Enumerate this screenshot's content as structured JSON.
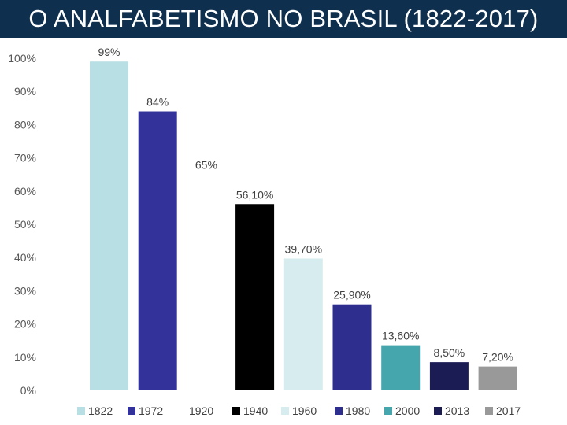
{
  "title": "O ANALFABETISMO NO BRASIL (1822-2017)",
  "chart_data": {
    "type": "bar",
    "title": "O ANALFABETISMO NO BRASIL (1822-2017)",
    "xlabel": "",
    "ylabel": "",
    "ylim": [
      0,
      100
    ],
    "yticks": [
      "0%",
      "10%",
      "20%",
      "30%",
      "40%",
      "50%",
      "60%",
      "70%",
      "80%",
      "90%",
      "100%"
    ],
    "grid": false,
    "legend": "bottom",
    "categories": [
      "1822",
      "1972",
      "1920",
      "1940",
      "1960",
      "1980",
      "2000",
      "2013",
      "2017"
    ],
    "values": [
      99,
      84,
      65,
      56.1,
      39.7,
      25.9,
      13.6,
      8.5,
      7.2
    ],
    "data_labels": [
      "99%",
      "84%",
      "65%",
      "56,10%",
      "39,70%",
      "25,90%",
      "13,60%",
      "8,50%",
      "7,20%"
    ],
    "colors": [
      "#b8dfe3",
      "#32329a",
      "#ffffff",
      "#000000",
      "#d6ecef",
      "#2e2e8f",
      "#46a6ad",
      "#1c1c55",
      "#999999"
    ]
  }
}
